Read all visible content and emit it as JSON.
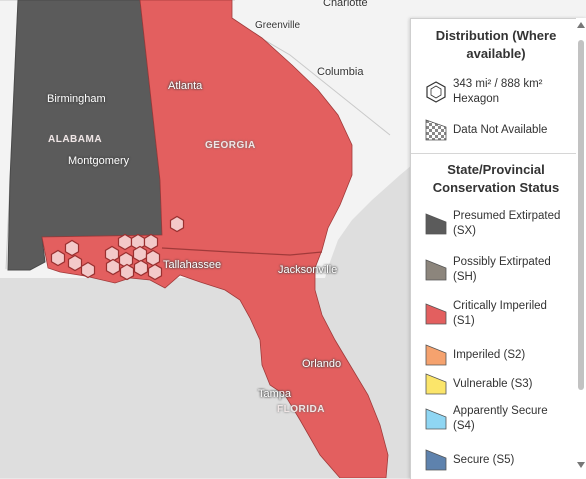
{
  "map": {
    "cities": {
      "charlotte": "Charlotte",
      "greenville": "Greenville",
      "columbia": "Columbia",
      "birmingham": "Birmingham",
      "atlanta": "Atlanta",
      "montgomery": "Montgomery",
      "tallahassee": "Tallahassee",
      "jacksonville": "Jacksonville",
      "orlando": "Orlando",
      "tampa": "Tampa"
    },
    "states": {
      "alabama": "ALABAMA",
      "georgia": "GEORGIA",
      "florida": "FLORIDA"
    }
  },
  "legend": {
    "distribution_title": "Distribution (Where available)",
    "hexagon_size": "343 mi² / 888 km²",
    "hexagon_label": "Hexagon",
    "no_data_label": "Data Not Available",
    "status_title": "State/Provincial Conservation Status",
    "statuses": [
      {
        "label": "Presumed Extirpated (SX)",
        "color": "#5b5b5b"
      },
      {
        "label": "Possibly Extirpated (SH)",
        "color": "#8c857c"
      },
      {
        "label": "Critically Imperiled (S1)",
        "color": "#e35f5f"
      },
      {
        "label": "Imperiled (S2)",
        "color": "#f5a26e"
      },
      {
        "label": "Vulnerable (S3)",
        "color": "#fbe56a"
      },
      {
        "label": "Apparently Secure (S4)",
        "color": "#8fd6f3"
      },
      {
        "label": "Secure (S5)",
        "color": "#5e82ad"
      }
    ]
  }
}
